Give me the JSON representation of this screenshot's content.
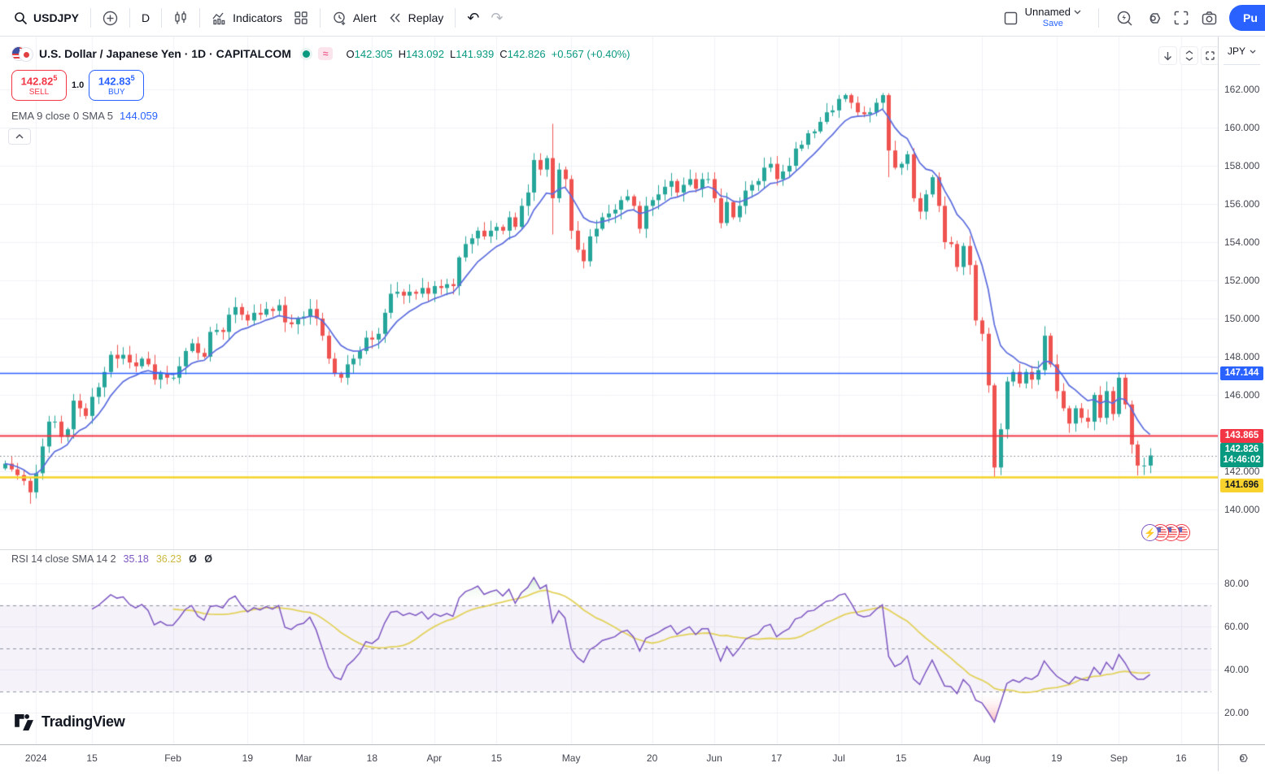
{
  "toolbar": {
    "symbol": "USDJPY",
    "interval": "D",
    "indicators_label": "Indicators",
    "alert_label": "Alert",
    "replay_label": "Replay",
    "layout_name": "Unnamed",
    "save_label": "Save",
    "publish_label": "Pu"
  },
  "header": {
    "title_line": "U.S. Dollar / Japanese Yen · 1D · CAPITALCOM",
    "ohlc": {
      "o_label": "O",
      "o": "142.305",
      "h_label": "H",
      "h": "143.092",
      "l_label": "L",
      "l": "141.939",
      "c_label": "C",
      "c": "142.826",
      "change": "+0.567 (+0.40%)"
    }
  },
  "trade": {
    "sell_price": "142.82",
    "sell_sup": "5",
    "sell_label": "SELL",
    "spread": "1.0",
    "buy_price": "142.83",
    "buy_sup": "5",
    "buy_label": "BUY"
  },
  "legends": {
    "ema_label": "EMA 9 close 0 SMA 5",
    "ema_value": "144.059",
    "rsi_label": "RSI 14 close SMA 14 2",
    "rsi_value": "35.18",
    "rsi_sma_value": "36.23",
    "rsi_null": "Ø Ø"
  },
  "price_axis": {
    "currency": "JPY",
    "ticks": [
      "162.000",
      "160.000",
      "158.000",
      "156.000",
      "154.000",
      "152.000",
      "150.000",
      "148.000",
      "146.000",
      "144.000",
      "142.000",
      "140.000"
    ],
    "tags": [
      {
        "text": "147.144",
        "price": 147.144,
        "bg": "#2962ff",
        "fg": "#ffffff"
      },
      {
        "text": "143.865",
        "price": 143.865,
        "bg": "#f23645",
        "fg": "#ffffff"
      },
      {
        "text": "142.826",
        "sub": "14:46:02",
        "price": 142.826,
        "bg": "#089981",
        "fg": "#ffffff"
      },
      {
        "text": "141.696",
        "price": 141.696,
        "bg": "#f8d32e",
        "fg": "#131722",
        "shift": 10
      }
    ]
  },
  "rsi_axis": {
    "ticks": [
      {
        "label": "80.00",
        "value": 80
      },
      {
        "label": "60.00",
        "value": 60
      },
      {
        "label": "40.00",
        "value": 40
      },
      {
        "label": "20.00",
        "value": 20
      }
    ]
  },
  "time_axis": {
    "labels": [
      {
        "text": "2024",
        "idx": 5
      },
      {
        "text": "15",
        "idx": 14
      },
      {
        "text": "Feb",
        "idx": 27
      },
      {
        "text": "19",
        "idx": 39
      },
      {
        "text": "Mar",
        "idx": 48
      },
      {
        "text": "18",
        "idx": 59
      },
      {
        "text": "Apr",
        "idx": 69
      },
      {
        "text": "15",
        "idx": 79
      },
      {
        "text": "May",
        "idx": 91
      },
      {
        "text": "20",
        "idx": 104
      },
      {
        "text": "Jun",
        "idx": 114
      },
      {
        "text": "17",
        "idx": 124
      },
      {
        "text": "Jul",
        "idx": 134
      },
      {
        "text": "15",
        "idx": 144
      },
      {
        "text": "Aug",
        "idx": 157
      },
      {
        "text": "19",
        "idx": 169
      },
      {
        "text": "Sep",
        "idx": 179
      },
      {
        "text": "16",
        "idx": 189
      }
    ]
  },
  "brand": {
    "name": "TradingView"
  },
  "chart_data": {
    "type": "candlestick",
    "symbol": "USDJPY",
    "interval": "1D",
    "title": "U.S. Dollar / Japanese Yen",
    "exchange": "CAPITALCOM",
    "price_axis_range": [
      140,
      162
    ],
    "grid": true,
    "closes": [
      142.4,
      142.1,
      141.8,
      141.5,
      140.9,
      141.9,
      143.3,
      144.6,
      144.6,
      143.8,
      144.2,
      145.7,
      145.3,
      144.9,
      145.9,
      146.4,
      147.2,
      148.1,
      147.9,
      148.1,
      147.7,
      147.5,
      147.9,
      147.6,
      146.8,
      147.1,
      146.9,
      146.9,
      147.5,
      148.3,
      148.7,
      148.2,
      148.0,
      149.3,
      149.4,
      149.3,
      150.2,
      150.6,
      150.2,
      149.9,
      150.3,
      150.2,
      150.5,
      150.4,
      150.7,
      149.8,
      149.7,
      150.0,
      150.1,
      150.5,
      150.0,
      149.1,
      147.9,
      147.1,
      146.9,
      147.6,
      147.9,
      148.3,
      149.0,
      148.9,
      149.2,
      150.3,
      151.3,
      151.4,
      151.2,
      151.4,
      151.3,
      151.6,
      151.3,
      151.7,
      151.6,
      151.8,
      151.7,
      153.2,
      153.9,
      154.2,
      154.6,
      154.3,
      154.6,
      154.8,
      154.6,
      155.3,
      154.8,
      155.9,
      156.6,
      158.3,
      157.8,
      158.4,
      156.3,
      157.8,
      157.3,
      154.6,
      153.6,
      153.0,
      154.3,
      154.7,
      155.3,
      155.5,
      155.7,
      156.2,
      156.4,
      155.9,
      154.7,
      155.9,
      156.2,
      156.5,
      156.9,
      157.2,
      156.6,
      157.0,
      157.3,
      156.8,
      157.3,
      157.3,
      156.3,
      155.0,
      156.1,
      155.3,
      155.9,
      156.7,
      157.0,
      157.2,
      157.9,
      158.1,
      157.3,
      157.7,
      158.0,
      158.9,
      159.1,
      159.7,
      159.8,
      160.3,
      160.8,
      160.9,
      161.5,
      161.7,
      161.3,
      160.8,
      160.7,
      160.8,
      161.3,
      161.7,
      158.8,
      157.9,
      158.1,
      158.6,
      156.3,
      155.6,
      156.5,
      157.4,
      155.9,
      154.0,
      153.9,
      152.7,
      153.8,
      152.8,
      149.9,
      149.2,
      146.5,
      142.2,
      144.2,
      146.7,
      147.2,
      146.6,
      147.2,
      146.8,
      147.3,
      149.1,
      147.6,
      146.2,
      145.3,
      144.5,
      145.3,
      144.8,
      144.6,
      146.0,
      144.8,
      146.2,
      145.0,
      146.9,
      145.5,
      143.4,
      142.3,
      142.3,
      142.83
    ],
    "wick_overrides": {
      "4": {
        "low": 140.3
      },
      "88": {
        "high": 160.2,
        "low": 154.4
      },
      "142": {
        "high": 161.8,
        "low": 157.4
      },
      "159": {
        "low": 141.68
      }
    },
    "ema_period": 9,
    "levels": [
      {
        "price": 147.144,
        "color": "#2962ff",
        "style": "solid",
        "width": 1.6
      },
      {
        "price": 143.865,
        "color": "#f23645",
        "style": "solid",
        "width": 2
      },
      {
        "price": 141.696,
        "color": "#f5d327",
        "style": "solid",
        "width": 2.6
      },
      {
        "price": 142.826,
        "color": "#787b86",
        "style": "dotted",
        "width": 1
      }
    ],
    "last": {
      "price": 142.826,
      "time": "14:46:02"
    },
    "colors": {
      "up": "#26a69a",
      "down": "#ef5350",
      "ema": "#5b6cde",
      "rsi": "#7e57c2",
      "rsi_sma": "#e3d25c",
      "band_fill": "rgba(126,87,194,0.08)",
      "band_line": "#8f93a0",
      "over_fill": "rgba(76,175,80,0.30)",
      "under_fill": "rgba(247,82,95,0.45)"
    },
    "rsi": {
      "period": 14,
      "sma_period": 14,
      "bands": [
        70,
        50,
        30
      ],
      "axis_range": [
        10,
        90
      ],
      "current": 35.18,
      "sma_current": 36.23
    }
  }
}
